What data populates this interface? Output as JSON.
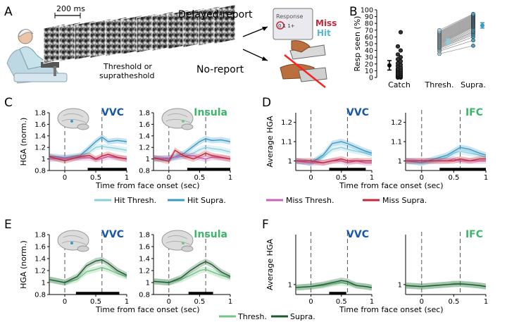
{
  "panel_letters": {
    "A": "A",
    "B": "B",
    "C": "C",
    "D": "D",
    "E": "E",
    "F": "F"
  },
  "panel_a": {
    "scale_label": "200 ms",
    "stim_label_line1": "Threshold or",
    "stim_label_line2": "supratheshold",
    "delayed_report": "Delayed-report",
    "no_report": "No-report",
    "miss_label": "Miss",
    "hit_label": "Hit",
    "screen_word": "Response",
    "screen_keys": "0 1 1+"
  },
  "colors": {
    "hit_thresh": "#8ccfdc",
    "hit_supra": "#3a9ac4",
    "miss_thresh": "#c766b8",
    "miss_supra": "#c22a3a",
    "thresh_green": "#74c48a",
    "supra_green": "#1d5a2e",
    "region_blue": "#1756a9",
    "region_green": "#3cb66b",
    "miss_text": "#c2293a",
    "hit_text": "#55b7d6"
  },
  "chart_data": [
    {
      "id": "B",
      "type": "scatter",
      "ylabel": "Resp seen (%)",
      "categories": [
        "Catch",
        "Thresh.",
        "Supra."
      ],
      "ylim": [
        0,
        100
      ],
      "yticks": [
        "0",
        "10",
        "20",
        "30",
        "40",
        "50",
        "60",
        "70",
        "80",
        "90",
        "100"
      ],
      "catch": [
        0,
        0,
        1,
        1,
        2,
        2,
        3,
        3,
        4,
        5,
        5,
        6,
        7,
        8,
        9,
        10,
        11,
        12,
        13,
        15,
        17,
        19,
        21,
        24,
        27,
        30,
        34,
        40,
        46,
        67
      ],
      "thresh": [
        35,
        39,
        41,
        43,
        44,
        45,
        46,
        47,
        48,
        49,
        50,
        51,
        52,
        53,
        54,
        55,
        56,
        57,
        58,
        59,
        60,
        61,
        62,
        63,
        64,
        65,
        66,
        67,
        68,
        70
      ],
      "supra": [
        47,
        55,
        60,
        63,
        65,
        67,
        68,
        70,
        72,
        74,
        75,
        76,
        77,
        78,
        79,
        80,
        81,
        82,
        83,
        84,
        85,
        86,
        87,
        88,
        89,
        90,
        91,
        92,
        93,
        94
      ],
      "means": [
        18,
        53,
        77
      ],
      "errs": [
        7,
        4,
        4
      ]
    },
    {
      "id": "C1",
      "type": "line",
      "ylabel": "HGA (norm.)",
      "region": "VVC",
      "ylim": [
        0.8,
        1.8
      ],
      "yticks": [
        "0.8",
        "1",
        "1.2",
        "1.4",
        "1.6",
        "1.8"
      ],
      "xlim": [
        -0.25,
        1
      ],
      "xticks": [
        "0",
        "0.5",
        "1"
      ],
      "sigbar": [
        0.37,
        1.0
      ],
      "series": [
        {
          "name": "Hit Thresh.",
          "x": [
            -0.25,
            0,
            0.25,
            0.4,
            0.5,
            0.6,
            0.7,
            0.85,
            1
          ],
          "y": [
            1.02,
            1.0,
            1.04,
            1.12,
            1.2,
            1.22,
            1.2,
            1.18,
            1.15
          ]
        },
        {
          "name": "Hit Supra.",
          "x": [
            -0.25,
            0,
            0.25,
            0.4,
            0.5,
            0.6,
            0.7,
            0.85,
            1
          ],
          "y": [
            1.05,
            1.02,
            1.06,
            1.2,
            1.3,
            1.38,
            1.3,
            1.32,
            1.3
          ]
        },
        {
          "name": "Miss Thresh.",
          "x": [
            -0.25,
            0,
            0.25,
            0.4,
            0.5,
            0.6,
            0.7,
            0.85,
            1
          ],
          "y": [
            1.0,
            1.01,
            1.02,
            1.02,
            0.99,
            1.01,
            1.04,
            1.02,
            1.0
          ]
        },
        {
          "name": "Miss Supra.",
          "x": [
            -0.25,
            0,
            0.25,
            0.4,
            0.5,
            0.6,
            0.7,
            0.85,
            1
          ],
          "y": [
            1.04,
            0.97,
            1.04,
            1.06,
            1.0,
            1.05,
            1.08,
            1.03,
            1.0
          ]
        }
      ]
    },
    {
      "id": "C2",
      "type": "line",
      "region": "Insula",
      "ylim": [
        0.8,
        1.8
      ],
      "yticks": [
        "0.8",
        "1",
        "1.2",
        "1.4",
        "1.6",
        "1.8"
      ],
      "xlim": [
        -0.25,
        1
      ],
      "xticks": [
        "0",
        "0.5",
        "1"
      ],
      "sigbar": [
        0.3,
        1.0
      ],
      "series": [
        {
          "name": "Hit Thresh.",
          "x": [
            -0.25,
            0,
            0.25,
            0.4,
            0.5,
            0.6,
            0.7,
            0.85,
            1
          ],
          "y": [
            1.0,
            1.0,
            1.05,
            1.1,
            1.16,
            1.2,
            1.18,
            1.16,
            1.12
          ]
        },
        {
          "name": "Hit Supra.",
          "x": [
            -0.25,
            0,
            0.25,
            0.4,
            0.5,
            0.6,
            0.7,
            0.85,
            1
          ],
          "y": [
            1.02,
            1.0,
            1.1,
            1.22,
            1.3,
            1.35,
            1.32,
            1.33,
            1.3
          ]
        },
        {
          "name": "Miss Thresh.",
          "x": [
            -0.25,
            0,
            0.25,
            0.4,
            0.5,
            0.6,
            0.7,
            0.85,
            1
          ],
          "y": [
            1.0,
            1.02,
            1.05,
            1.06,
            1.02,
            1.0,
            1.03,
            1.02,
            1.0
          ]
        },
        {
          "name": "Miss Supra.",
          "x": [
            -0.25,
            0,
            0.1,
            0.25,
            0.4,
            0.5,
            0.6,
            0.7,
            0.85,
            1
          ],
          "y": [
            1.02,
            0.96,
            1.15,
            1.05,
            1.0,
            1.05,
            1.1,
            1.06,
            1.03,
            1.0
          ]
        }
      ]
    },
    {
      "id": "D1",
      "type": "line",
      "ylabel": "Average HGA",
      "region": "VVC",
      "ylim": [
        0.95,
        1.25
      ],
      "yticks": [
        "1",
        "1.1",
        "1.2"
      ],
      "xlim": [
        -0.25,
        1
      ],
      "xticks": [
        "0",
        "0.5",
        "1"
      ],
      "sigbar": [
        0.3,
        0.9
      ],
      "series": [
        {
          "name": "Hit Thresh.",
          "x": [
            -0.25,
            0,
            0.2,
            0.35,
            0.5,
            0.6,
            0.75,
            0.9,
            1
          ],
          "y": [
            1.0,
            0.99,
            1.02,
            1.06,
            1.07,
            1.06,
            1.05,
            1.04,
            1.03
          ]
        },
        {
          "name": "Hit Supra.",
          "x": [
            -0.25,
            0,
            0.2,
            0.35,
            0.5,
            0.6,
            0.75,
            0.9,
            1
          ],
          "y": [
            1.0,
            0.99,
            1.03,
            1.09,
            1.1,
            1.09,
            1.07,
            1.05,
            1.04
          ]
        },
        {
          "name": "Miss Thresh.",
          "x": [
            -0.25,
            0,
            0.2,
            0.35,
            0.5,
            0.6,
            0.75,
            0.9,
            1
          ],
          "y": [
            1.0,
            0.99,
            0.99,
            1.0,
            1.0,
            0.99,
            1.0,
            0.99,
            0.99
          ]
        },
        {
          "name": "Miss Supra.",
          "x": [
            -0.25,
            0,
            0.2,
            0.35,
            0.5,
            0.6,
            0.75,
            0.9,
            1
          ],
          "y": [
            1.0,
            1.0,
            0.99,
            1.0,
            1.01,
            1.0,
            1.0,
            1.0,
            1.0
          ]
        }
      ]
    },
    {
      "id": "D2",
      "type": "line",
      "region": "IFC",
      "ylim": [
        0.95,
        1.25
      ],
      "yticks": [
        "1",
        "1.1",
        "1.2"
      ],
      "xlim": [
        -0.25,
        1
      ],
      "xticks": [
        "0",
        "0.5",
        "1"
      ],
      "sigbar": [
        0.28,
        1.0
      ],
      "series": [
        {
          "name": "Hit Thresh.",
          "x": [
            -0.25,
            0,
            0.2,
            0.4,
            0.5,
            0.6,
            0.75,
            0.9,
            1
          ],
          "y": [
            1.0,
            0.99,
            1.0,
            1.02,
            1.04,
            1.05,
            1.04,
            1.03,
            1.02
          ]
        },
        {
          "name": "Hit Supra.",
          "x": [
            -0.25,
            0,
            0.2,
            0.4,
            0.5,
            0.6,
            0.75,
            0.9,
            1
          ],
          "y": [
            1.0,
            0.99,
            1.01,
            1.03,
            1.05,
            1.07,
            1.06,
            1.04,
            1.03
          ]
        },
        {
          "name": "Miss Thresh.",
          "x": [
            -0.25,
            0,
            0.2,
            0.4,
            0.5,
            0.6,
            0.75,
            0.9,
            1
          ],
          "y": [
            1.0,
            1.0,
            1.0,
            1.0,
            1.01,
            1.0,
            1.0,
            1.0,
            1.0
          ]
        },
        {
          "name": "Miss Supra.",
          "x": [
            -0.25,
            0,
            0.2,
            0.4,
            0.5,
            0.6,
            0.75,
            0.9,
            1
          ],
          "y": [
            1.0,
            1.0,
            1.0,
            1.0,
            1.0,
            1.01,
            1.0,
            1.01,
            1.01
          ]
        }
      ]
    },
    {
      "id": "E1",
      "type": "line",
      "ylabel": "HGA (norm.)",
      "region": "VVC",
      "ylim": [
        0.8,
        1.8
      ],
      "yticks": [
        "0.8",
        "1",
        "1.2",
        "1.4",
        "1.6",
        "1.8"
      ],
      "xlim": [
        -0.25,
        1
      ],
      "xticks": [
        "0",
        "0.5",
        "1"
      ],
      "sigbar": [
        0.18,
        0.88
      ],
      "series": [
        {
          "name": "Thresh.",
          "x": [
            -0.25,
            0,
            0.2,
            0.35,
            0.5,
            0.6,
            0.7,
            0.85,
            1
          ],
          "y": [
            1.05,
            1.0,
            1.05,
            1.18,
            1.22,
            1.25,
            1.22,
            1.15,
            1.1
          ]
        },
        {
          "name": "Supra.",
          "x": [
            -0.25,
            0,
            0.2,
            0.35,
            0.5,
            0.6,
            0.7,
            0.85,
            1
          ],
          "y": [
            1.05,
            1.0,
            1.1,
            1.28,
            1.36,
            1.38,
            1.32,
            1.2,
            1.12
          ]
        }
      ]
    },
    {
      "id": "E2",
      "type": "line",
      "region": "Insula",
      "ylim": [
        0.8,
        1.8
      ],
      "yticks": [
        "0.8",
        "1",
        "1.2",
        "1.4",
        "1.6",
        "1.8"
      ],
      "xlim": [
        -0.25,
        1
      ],
      "xticks": [
        "0",
        "0.5",
        "1"
      ],
      "sigbar": [
        0.32,
        0.72
      ],
      "series": [
        {
          "name": "Thresh.",
          "x": [
            -0.25,
            0,
            0.2,
            0.35,
            0.5,
            0.6,
            0.7,
            0.85,
            1
          ],
          "y": [
            1.02,
            1.0,
            1.05,
            1.12,
            1.2,
            1.22,
            1.18,
            1.12,
            1.08
          ]
        },
        {
          "name": "Supra.",
          "x": [
            -0.25,
            0,
            0.2,
            0.35,
            0.5,
            0.6,
            0.7,
            0.85,
            1
          ],
          "y": [
            1.02,
            1.0,
            1.08,
            1.2,
            1.3,
            1.35,
            1.3,
            1.18,
            1.1
          ]
        }
      ]
    },
    {
      "id": "F1",
      "type": "line",
      "ylabel": "Average HGA",
      "region": "VVC",
      "ylim": [
        0.95,
        1.25
      ],
      "yticks": [
        "1"
      ],
      "xlim": [
        -0.25,
        1
      ],
      "xticks": [
        "0",
        "0.5",
        "1"
      ],
      "sigbar": [
        0.3,
        0.58
      ],
      "series": [
        {
          "name": "Thresh.",
          "x": [
            -0.25,
            0,
            0.2,
            0.35,
            0.5,
            0.6,
            0.75,
            0.9,
            1
          ],
          "y": [
            0.985,
            0.99,
            0.995,
            1.005,
            1.01,
            1.005,
            0.995,
            0.99,
            0.985
          ]
        },
        {
          "name": "Supra.",
          "x": [
            -0.25,
            0,
            0.2,
            0.35,
            0.5,
            0.6,
            0.75,
            0.9,
            1
          ],
          "y": [
            0.985,
            0.99,
            1.0,
            1.01,
            1.02,
            1.015,
            0.995,
            0.99,
            0.985
          ]
        }
      ]
    },
    {
      "id": "F2",
      "type": "line",
      "region": "IFC",
      "ylim": [
        0.95,
        1.25
      ],
      "yticks": [
        "1"
      ],
      "xlim": [
        -0.25,
        1
      ],
      "xticks": [
        "0",
        "0.5",
        "1"
      ],
      "sigbar": null,
      "series": [
        {
          "name": "Thresh.",
          "x": [
            -0.25,
            0,
            0.2,
            0.4,
            0.5,
            0.6,
            0.75,
            0.9,
            1
          ],
          "y": [
            0.995,
            0.99,
            0.995,
            1.0,
            1.005,
            1.005,
            1.0,
            0.995,
            0.99
          ]
        },
        {
          "name": "Supra.",
          "x": [
            -0.25,
            0,
            0.2,
            0.4,
            0.5,
            0.6,
            0.75,
            0.9,
            1
          ],
          "y": [
            0.995,
            0.99,
            0.995,
            1.0,
            1.002,
            1.003,
            1.0,
            0.995,
            0.99
          ]
        }
      ]
    }
  ],
  "xlabel": "Time from face onset (sec)",
  "legend_cd": [
    "Hit Thresh.",
    "Hit Supra.",
    "Miss Thresh.",
    "Miss Supra."
  ],
  "legend_ef": [
    "Thresh.",
    "Supra."
  ]
}
